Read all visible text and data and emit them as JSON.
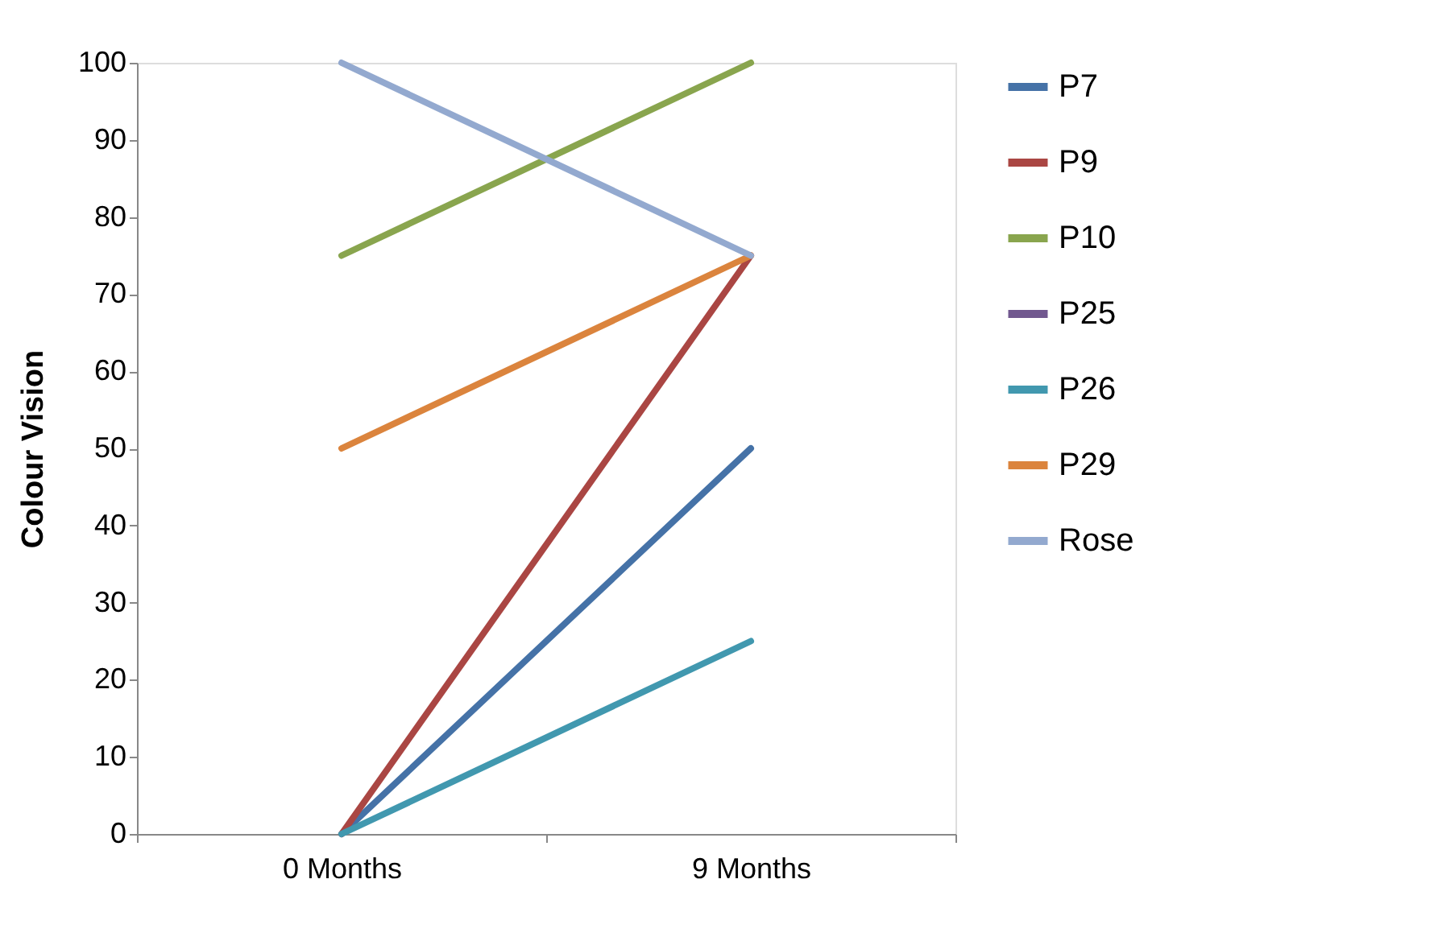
{
  "chart_data": {
    "type": "line",
    "ylabel": "Colour Vision",
    "categories": [
      "0 Months",
      "9 Months"
    ],
    "series": [
      {
        "name": "P7",
        "color": "#4572a7",
        "values": [
          0,
          50
        ]
      },
      {
        "name": "P9",
        "color": "#aa4643",
        "values": [
          0,
          75
        ]
      },
      {
        "name": "P10",
        "color": "#89a54e",
        "values": [
          75,
          100
        ]
      },
      {
        "name": "P25",
        "color": "#71588f",
        "values": [
          null,
          null
        ]
      },
      {
        "name": "P26",
        "color": "#4198af",
        "values": [
          0,
          25
        ]
      },
      {
        "name": "P29",
        "color": "#db843d",
        "values": [
          50,
          75
        ]
      },
      {
        "name": "Rose",
        "color": "#93a9cf",
        "values": [
          100,
          75
        ]
      }
    ],
    "ylim": [
      0,
      100
    ],
    "yticks": [
      0,
      10,
      20,
      30,
      40,
      50,
      60,
      70,
      80,
      90,
      100
    ],
    "grid": false,
    "legend": "right",
    "marker": "none",
    "line_style": "solid"
  }
}
